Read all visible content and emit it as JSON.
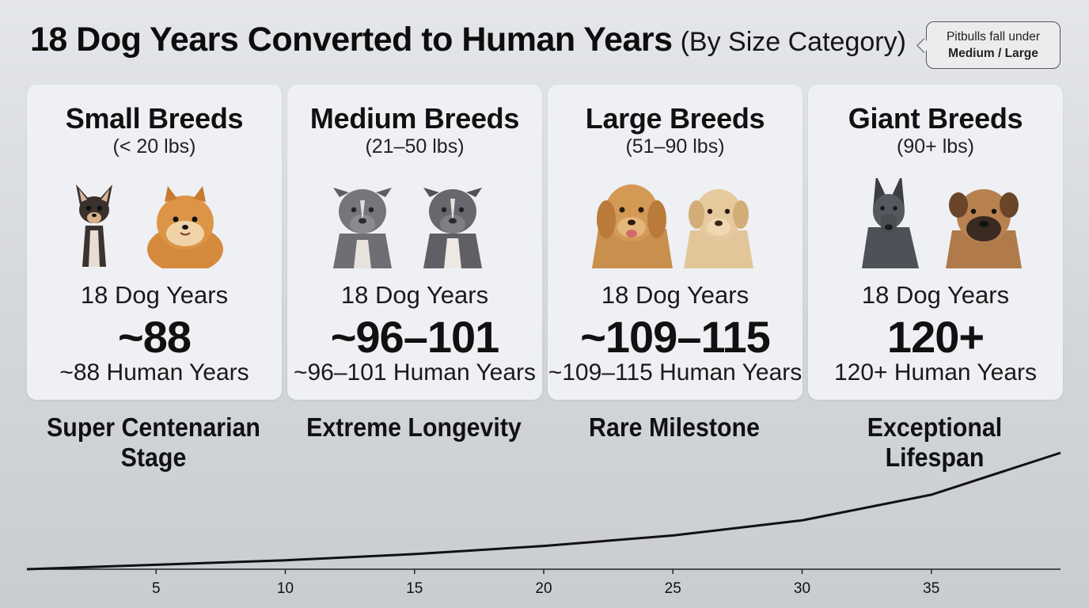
{
  "title": {
    "main": "18 Dog Years Converted to Human Years",
    "sub": "(By Size Category)"
  },
  "callout": {
    "line1": "Pitbulls fall under",
    "line2": "Medium / Large"
  },
  "cards": [
    {
      "name": "Small Breeds",
      "range": "(< 20 lbs)",
      "dog_years": "18 Dog Years",
      "big_value": "~88",
      "human_years": "~88 Human Years",
      "stage": "Super Centenarian Stage",
      "dog_images": [
        "chihuahua-image",
        "pomeranian-image"
      ]
    },
    {
      "name": "Medium Breeds",
      "range": "(21–50 lbs)",
      "dog_years": "18 Dog Years",
      "big_value": "~96–101",
      "human_years": "~96–101 Human Years",
      "stage": "Extreme Longevity",
      "dog_images": [
        "pitbull-image",
        "pitbull-image"
      ]
    },
    {
      "name": "Large Breeds",
      "range": "(51–90 lbs)",
      "dog_years": "18 Dog Years",
      "big_value": "~109–115",
      "human_years": "~109–115 Human Years",
      "stage": "Rare Milestone",
      "dog_images": [
        "golden-retriever-image",
        "labrador-image"
      ]
    },
    {
      "name": "Giant Breeds",
      "range": "(90+ lbs)",
      "dog_years": "18 Dog Years",
      "big_value": "120+",
      "human_years": "120+ Human Years",
      "stage": "Exceptional Lifespan",
      "dog_images": [
        "great-dane-image",
        "mastiff-image"
      ]
    }
  ],
  "chart_data": {
    "type": "line",
    "title": "",
    "xlabel": "",
    "ylabel": "",
    "x_ticks": [
      5,
      10,
      15,
      20,
      25,
      30,
      35
    ],
    "xlim": [
      0,
      40
    ],
    "ylim": [
      0,
      1
    ],
    "grid": false,
    "series": [
      {
        "x": [
          0,
          5,
          10,
          15,
          20,
          25,
          30,
          35,
          40
        ],
        "y": [
          0.0,
          0.038,
          0.077,
          0.13,
          0.2,
          0.29,
          0.42,
          0.64,
          1.0
        ]
      }
    ]
  },
  "colors": {
    "background": "#d8dbe0",
    "card": "#eef0f3",
    "text": "#111111"
  }
}
